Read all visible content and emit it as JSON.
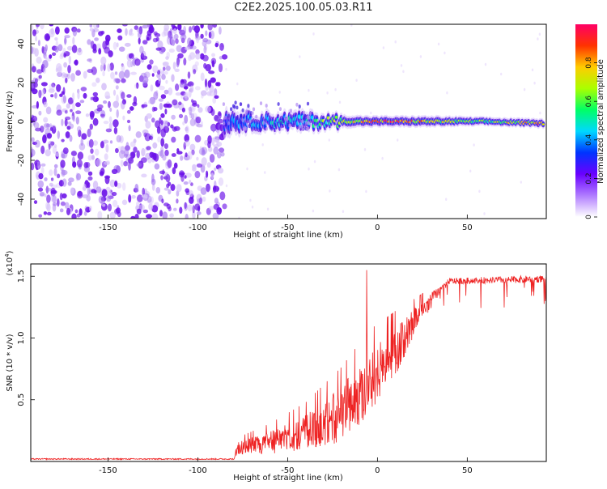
{
  "title": "C2E2.2025.100.05.03.R11",
  "chart_data": [
    {
      "type": "heatmap",
      "name": "spectrogram",
      "xlabel": "Height of straight line (km)",
      "ylabel": "Frequency (Hz)",
      "xlim": [
        -193,
        94
      ],
      "ylim": [
        -50,
        50
      ],
      "xticks": [
        -150,
        -100,
        -50,
        0,
        50
      ],
      "yticks": [
        -40,
        -20,
        0,
        20,
        40
      ],
      "colorbar": {
        "label": "Normalized spectral amplitude",
        "range": [
          0,
          1
        ],
        "ticks": [
          0,
          0.2,
          0.4,
          0.6,
          0.8
        ],
        "colors": [
          "#ffffff",
          "#b07cff",
          "#6a00ff",
          "#0033ff",
          "#00d8ff",
          "#00ff66",
          "#aaff00",
          "#ffcc00",
          "#ff3300",
          "#ff0066"
        ]
      },
      "noise_region": {
        "x": [
          -193,
          -85
        ],
        "freq": [
          -50,
          50
        ],
        "amplitude": [
          0.02,
          0.18
        ]
      },
      "ridge": [
        {
          "x": -85,
          "freq": 0,
          "halfwidth": 6,
          "amplitude": 0.3
        },
        {
          "x": -70,
          "freq": 0,
          "halfwidth": 4,
          "amplitude": 0.4
        },
        {
          "x": -40,
          "freq": 0,
          "halfwidth": 4,
          "amplitude": 0.45
        },
        {
          "x": -25,
          "freq": 0,
          "halfwidth": 3,
          "amplitude": 0.6
        },
        {
          "x": 0,
          "freq": 0,
          "halfwidth": 2.5,
          "amplitude": 0.85
        },
        {
          "x": 30,
          "freq": 0,
          "halfwidth": 2.5,
          "amplitude": 0.7
        },
        {
          "x": 60,
          "freq": 0,
          "halfwidth": 2,
          "amplitude": 0.55
        },
        {
          "x": 90,
          "freq": -1,
          "halfwidth": 2,
          "amplitude": 0.8
        }
      ]
    },
    {
      "type": "line",
      "name": "snr",
      "xlabel": "Height of straight line (km)",
      "ylabel": "SNR (10 * v/v)",
      "multiplier": "(x10",
      "multiplier_exponent": "4",
      "multiplier_close": ")",
      "xlim": [
        -193,
        94
      ],
      "ylim": [
        0,
        1.6
      ],
      "xticks": [
        -150,
        -100,
        -50,
        0,
        50
      ],
      "yticks": [
        0.5,
        1.0,
        1.5
      ],
      "ytick_labels": [
        "0.5",
        "1.0",
        "1.5"
      ],
      "color": "#ee2222",
      "envelope": [
        {
          "x": -193,
          "base": 0.02,
          "jitter": 0.005
        },
        {
          "x": -80,
          "base": 0.02,
          "jitter": 0.005
        },
        {
          "x": -78,
          "base": 0.12,
          "jitter": 0.08
        },
        {
          "x": -60,
          "base": 0.18,
          "jitter": 0.14
        },
        {
          "x": -40,
          "base": 0.28,
          "jitter": 0.22
        },
        {
          "x": -20,
          "base": 0.45,
          "jitter": 0.35
        },
        {
          "x": -5,
          "base": 0.7,
          "jitter": 0.4
        },
        {
          "x": 10,
          "base": 0.95,
          "jitter": 0.3
        },
        {
          "x": 25,
          "base": 1.25,
          "jitter": 0.12
        },
        {
          "x": 40,
          "base": 1.46,
          "jitter": 0.05
        },
        {
          "x": 94,
          "base": 1.48,
          "jitter": 0.06
        }
      ],
      "peak": {
        "x": -6,
        "value": 1.55
      }
    }
  ]
}
